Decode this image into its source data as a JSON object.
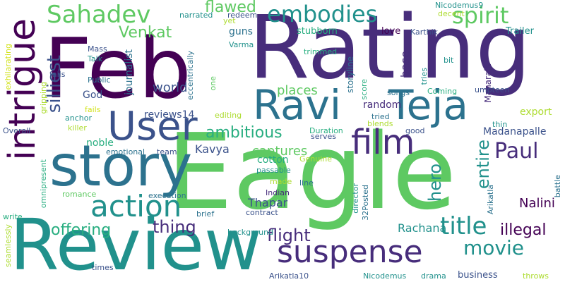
{
  "palette": [
    "#440154",
    "#472d7b",
    "#3b528b",
    "#2c728e",
    "#21918c",
    "#28ae80",
    "#5ec962",
    "#addc30",
    "#d2e21b"
  ],
  "words": {
    "feb": "Feb",
    "rating": "Rating",
    "eagle": "Eagle",
    "review": "Review",
    "story": "story",
    "ravi": "Ravi",
    "teja": "Teja",
    "user": "User",
    "intrigue": "intrigue",
    "suspense": "suspense",
    "action": "action",
    "sahadev": "Sahadev",
    "embodies": "embodies",
    "spirit": "spirit",
    "film": "film",
    "paul": "Paul",
    "movie": "movie",
    "title": "title",
    "offering": "offering",
    "thing": "thing",
    "flight": "flight",
    "flawed": "flawed",
    "venkat": "Venkat",
    "silliest": "silliest",
    "ambitious": "ambitious",
    "hero": "hero",
    "entire": "entire",
    "illegal": "illegal",
    "world": "world",
    "places": "places",
    "captures": "captures",
    "nalini": "Nalini",
    "rachana": "Rachana",
    "thapar": "Thapar",
    "kavya": "Kavya",
    "madanapalle": "Madanapalle",
    "reviews14": "reviews14",
    "noble": "noble",
    "cotton": "cotton",
    "random": "random",
    "export": "export",
    "business": "business",
    "journalist": "journalist",
    "base": "base",
    "god": "God",
    "guns": "guns",
    "stubborn": "stubborn",
    "love": "love",
    "karthik": "Karthik",
    "trailer": "Trailer",
    "maharaja": "Maharaja",
    "storyline": "storyline",
    "tries": "tries",
    "umpteen": "umpteen",
    "coming": "Coming",
    "songs": "songs",
    "score": "score",
    "tried": "tried",
    "blends": "blends",
    "good": "good",
    "thin": "thin",
    "duration": "Duration",
    "serves": "serves",
    "genuine": "Genuine",
    "passable": "passable",
    "made": "made",
    "line": "line",
    "indian": "Indian",
    "contract": "contract",
    "director": "director",
    "posted32": "32Posted",
    "arikatla": "Arikatla",
    "battle": "battle",
    "nicodemus9": "Nicodemus9",
    "decent": "decent",
    "redeem": "redeem",
    "narrated": "narrated",
    "mass": "Mass",
    "talk": "Talk",
    "public": "Public",
    "varma": "Varma",
    "yet": "yet",
    "eccentrically": "eccentrically",
    "one": "one",
    "trimmed": "trimmed",
    "bit": "bit",
    "editing": "editing",
    "exhilarating": "exhilarating",
    "falls": "falls",
    "gripping": "gripping",
    "fails": "fails",
    "anchor": "anchor",
    "killer": "killer",
    "overall": "Overall",
    "emotional": "emotional",
    "team": "team",
    "omnipresent": "omnipresent",
    "romance": "romance",
    "execution": "execution",
    "brief": "brief",
    "write": "write",
    "seamlessly": "seamlessly",
    "background": "background",
    "times": "times",
    "arikatla10": "Arikatla10",
    "nicodemus": "Nicodemus",
    "drama": "drama",
    "throws": "throws"
  }
}
